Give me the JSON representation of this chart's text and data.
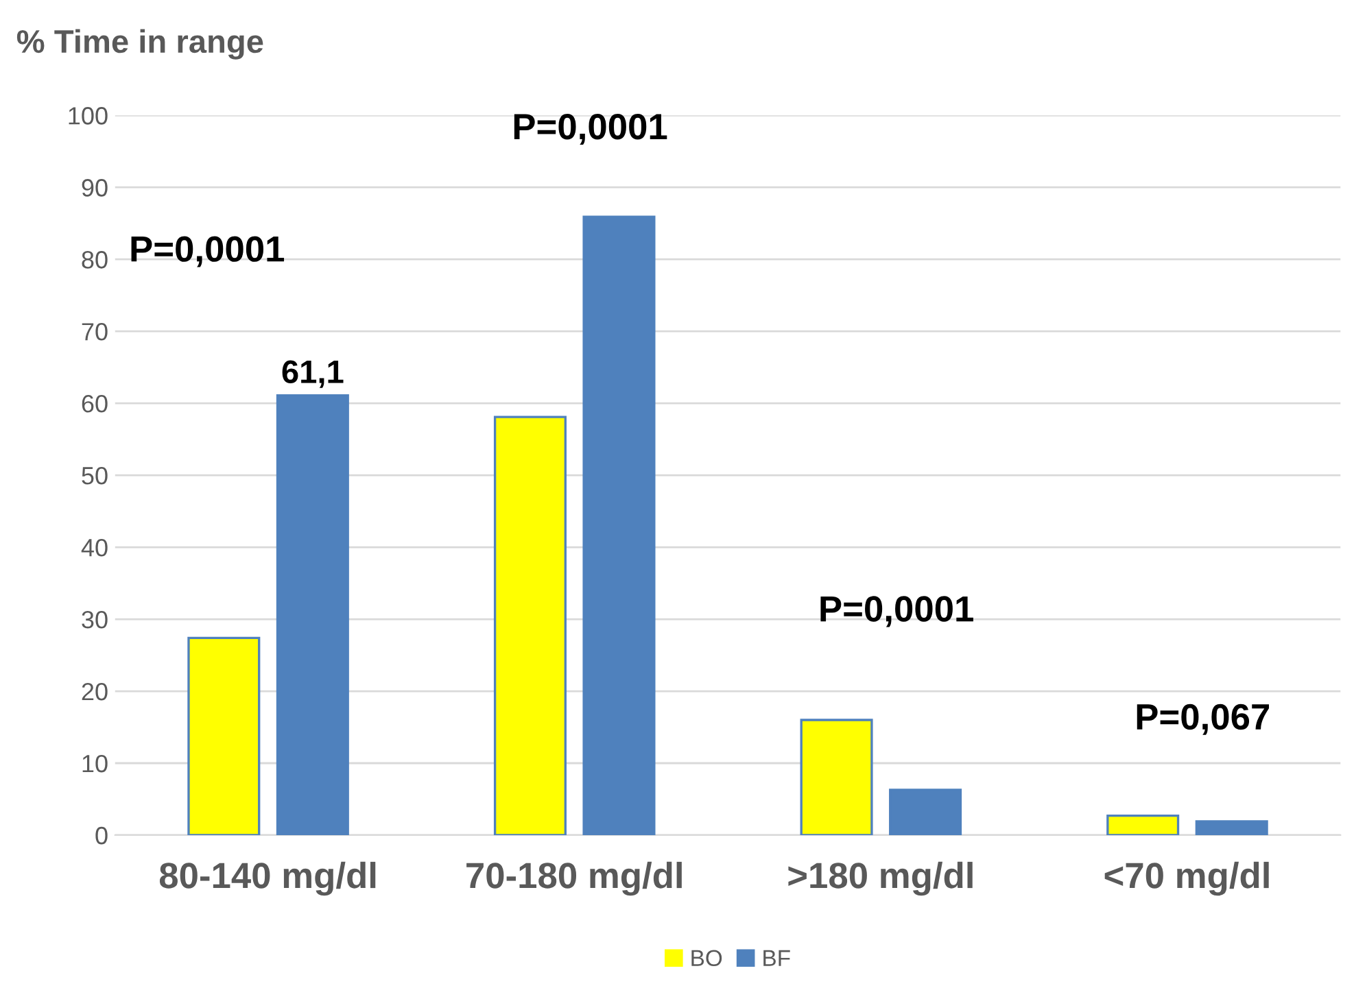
{
  "chart_data": {
    "type": "bar",
    "ylabel": "% Time in range",
    "categories": [
      "80-140 mg/dl",
      "70-180 mg/dl",
      ">180 mg/dl",
      "<70 mg/dl"
    ],
    "series": [
      {
        "name": "BO",
        "color": "#ffff00",
        "values": [
          27.4,
          58.1,
          16.0,
          2.7
        ]
      },
      {
        "name": "BF",
        "color": "#4f81bd",
        "values": [
          61.1,
          85.9,
          6.3,
          1.9
        ],
        "value_labels": [
          "61,1",
          null,
          null,
          null
        ]
      }
    ],
    "ylim": [
      0,
      100
    ],
    "yticks": [
      0,
      10,
      20,
      30,
      40,
      50,
      60,
      70,
      80,
      90,
      100
    ],
    "grid": "y",
    "legend": "bottom",
    "annotations": [
      "P=0,0001",
      "P=0,0001",
      "P=0,0001",
      "P=0,067"
    ]
  }
}
